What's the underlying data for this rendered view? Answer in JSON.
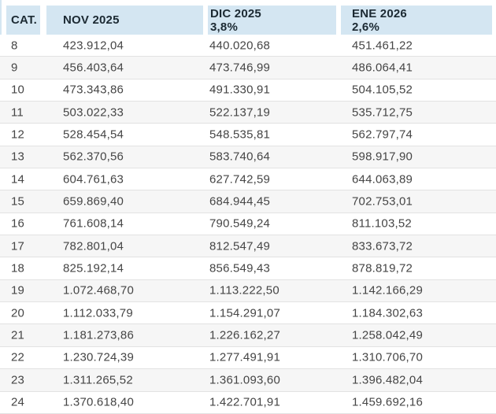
{
  "table": {
    "columns": [
      {
        "key": "cat",
        "label": "CAT.",
        "sublabel": ""
      },
      {
        "key": "nov",
        "label": "NOV 2025",
        "sublabel": ""
      },
      {
        "key": "dic",
        "label": "DIC 2025",
        "sublabel": "3,8%"
      },
      {
        "key": "ene",
        "label": "ENE 2026",
        "sublabel": "2,6%"
      }
    ],
    "rows": [
      {
        "cat": "8",
        "nov": "423.912,04",
        "dic": "440.020,68",
        "ene": "451.461,22"
      },
      {
        "cat": "9",
        "nov": "456.403,64",
        "dic": "473.746,99",
        "ene": "486.064,41"
      },
      {
        "cat": "10",
        "nov": "473.343,86",
        "dic": "491.330,91",
        "ene": "504.105,52"
      },
      {
        "cat": "11",
        "nov": "503.022,33",
        "dic": "522.137,19",
        "ene": "535.712,75"
      },
      {
        "cat": "12",
        "nov": "528.454,54",
        "dic": "548.535,81",
        "ene": "562.797,74"
      },
      {
        "cat": "13",
        "nov": "562.370,56",
        "dic": "583.740,64",
        "ene": "598.917,90"
      },
      {
        "cat": "14",
        "nov": "604.761,63",
        "dic": "627.742,59",
        "ene": "644.063,89"
      },
      {
        "cat": "15",
        "nov": "659.869,40",
        "dic": "684.944,45",
        "ene": "702.753,01"
      },
      {
        "cat": "16",
        "nov": "761.608,14",
        "dic": "790.549,24",
        "ene": "811.103,52"
      },
      {
        "cat": "17",
        "nov": "782.801,04",
        "dic": "812.547,49",
        "ene": "833.673,72"
      },
      {
        "cat": "18",
        "nov": "825.192,14",
        "dic": "856.549,43",
        "ene": "878.819,72"
      },
      {
        "cat": "19",
        "nov": "1.072.468,70",
        "dic": "1.113.222,50",
        "ene": "1.142.166,29"
      },
      {
        "cat": "20",
        "nov": "1.112.033,79",
        "dic": "1.154.291,07",
        "ene": "1.184.302,63"
      },
      {
        "cat": "21",
        "nov": "1.181.273,86",
        "dic": "1.226.162,27",
        "ene": "1.258.042,49"
      },
      {
        "cat": "22",
        "nov": "1.230.724,39",
        "dic": "1.277.491,91",
        "ene": "1.310.706,70"
      },
      {
        "cat": "23",
        "nov": "1.311.265,52",
        "dic": "1.361.093,60",
        "ene": "1.396.482,04"
      },
      {
        "cat": "24",
        "nov": "1.370.618,40",
        "dic": "1.422.701,91",
        "ene": "1.459.692,16"
      }
    ]
  },
  "colors": {
    "header_bg": "#d4e6f2",
    "header_text": "#1c2a33",
    "body_text": "#454545",
    "alt_row_bg": "#f6f6f6",
    "divider": "#e2e2e2"
  }
}
